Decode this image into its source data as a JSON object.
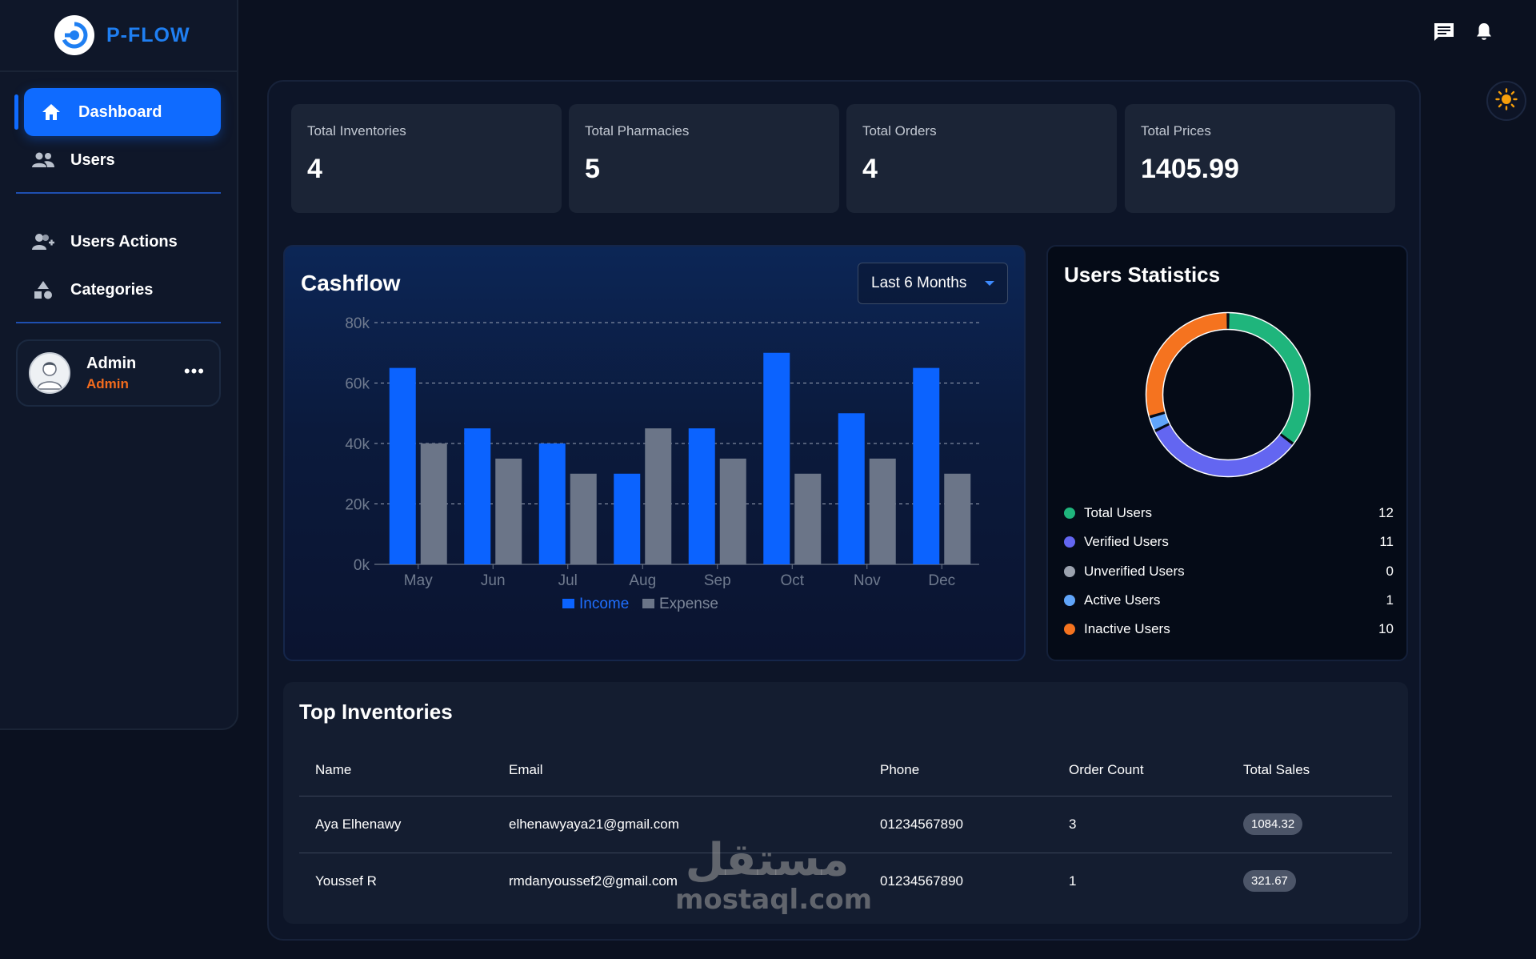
{
  "brand": {
    "name": "P-FLOW"
  },
  "sidebar": {
    "items": [
      {
        "label": "Dashboard",
        "icon": "home-icon",
        "active": true
      },
      {
        "label": "Users",
        "icon": "users-icon",
        "active": false
      },
      {
        "label": "Users Actions",
        "icon": "user-add-icon",
        "active": false
      },
      {
        "label": "Categories",
        "icon": "shapes-icon",
        "active": false
      }
    ],
    "user": {
      "name": "Admin",
      "role": "Admin"
    }
  },
  "header": {
    "icons": [
      "message-icon",
      "bell-icon",
      "sun-icon"
    ]
  },
  "stats": [
    {
      "label": "Total Inventories",
      "value": "4"
    },
    {
      "label": "Total Pharmacies",
      "value": "5"
    },
    {
      "label": "Total Orders",
      "value": "4"
    },
    {
      "label": "Total Prices",
      "value": "1405.99"
    }
  ],
  "cashflow": {
    "title": "Cashflow",
    "range": "Last 6 Months"
  },
  "chart_data": {
    "type": "bar",
    "categories": [
      "May",
      "Jun",
      "Jul",
      "Aug",
      "Sep",
      "Oct",
      "Nov",
      "Dec"
    ],
    "series": [
      {
        "name": "Income",
        "color": "#0b63ff",
        "values": [
          65000,
          45000,
          40000,
          30000,
          45000,
          70000,
          50000,
          65000
        ]
      },
      {
        "name": "Expense",
        "color": "#6b7588",
        "values": [
          40000,
          35000,
          30000,
          45000,
          35000,
          30000,
          35000,
          30000
        ]
      }
    ],
    "y_ticks": [
      "0k",
      "20k",
      "40k",
      "60k",
      "80k"
    ],
    "ylim": [
      0,
      80000
    ],
    "grid": true,
    "legend": "bottom"
  },
  "users_statistics": {
    "title": "Users Statistics",
    "items": [
      {
        "label": "Total Users",
        "value": "12",
        "color": "#1fb57c"
      },
      {
        "label": "Verified Users",
        "value": "11",
        "color": "#6366f1"
      },
      {
        "label": "Unverified Users",
        "value": "0",
        "color": "#9ca3af"
      },
      {
        "label": "Active Users",
        "value": "1",
        "color": "#60a5fa"
      },
      {
        "label": "Inactive Users",
        "value": "10",
        "color": "#f5731f"
      }
    ]
  },
  "inventories": {
    "title": "Top Inventories",
    "columns": [
      "Name",
      "Email",
      "Phone",
      "Order Count",
      "Total Sales"
    ],
    "rows": [
      {
        "name": "Aya Elhenawy",
        "email": "elhenawyaya21@gmail.com",
        "phone": "01234567890",
        "orders": "3",
        "sales": "1084.32"
      },
      {
        "name": "Youssef R",
        "email": "rmdanyoussef2@gmail.com",
        "phone": "01234567890",
        "orders": "1",
        "sales": "321.67"
      }
    ]
  },
  "watermark": {
    "arabic": "مستقل",
    "latin": "mostaql.com"
  }
}
